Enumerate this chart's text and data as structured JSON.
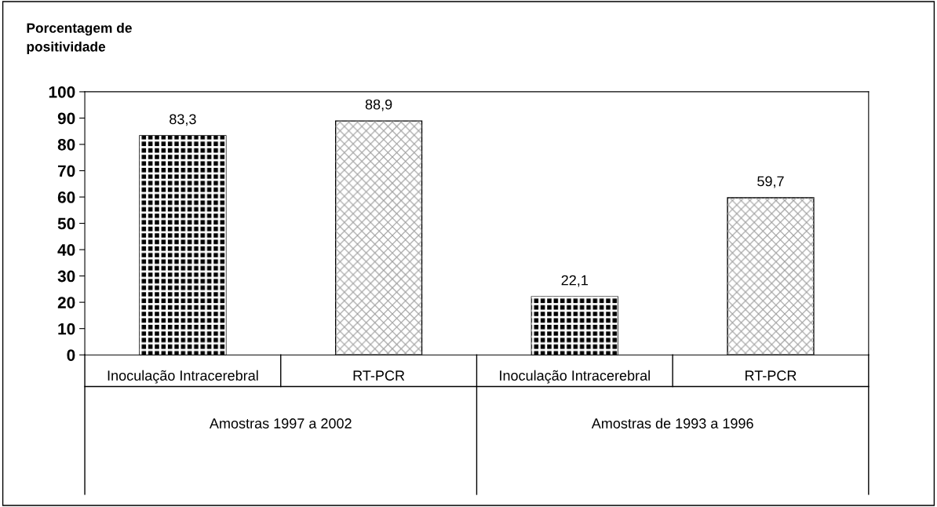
{
  "chart_data": {
    "type": "bar",
    "ylabel": "Porcentagem de\npositividade",
    "categories": [
      "Inoculação Intracerebral",
      "RT-PCR",
      "Inoculação Intracerebral",
      "RT-PCR"
    ],
    "values": [
      83.3,
      88.9,
      22.1,
      59.7
    ],
    "colors": [
      "#000000",
      "#ffffff",
      "#000000",
      "#ffffff"
    ],
    "ylim": [
      0,
      100
    ],
    "yticks": [
      0,
      10,
      20,
      30,
      40,
      50,
      60,
      70,
      80,
      90,
      100
    ],
    "data_labels": true,
    "value_labels": [
      "83,3",
      "88,9",
      "22,1",
      "59,7"
    ],
    "annotations": [
      "Amostras 1997 a 2002",
      "Amostras de 1993 a 1996"
    ],
    "grid": false,
    "legend": false
  }
}
